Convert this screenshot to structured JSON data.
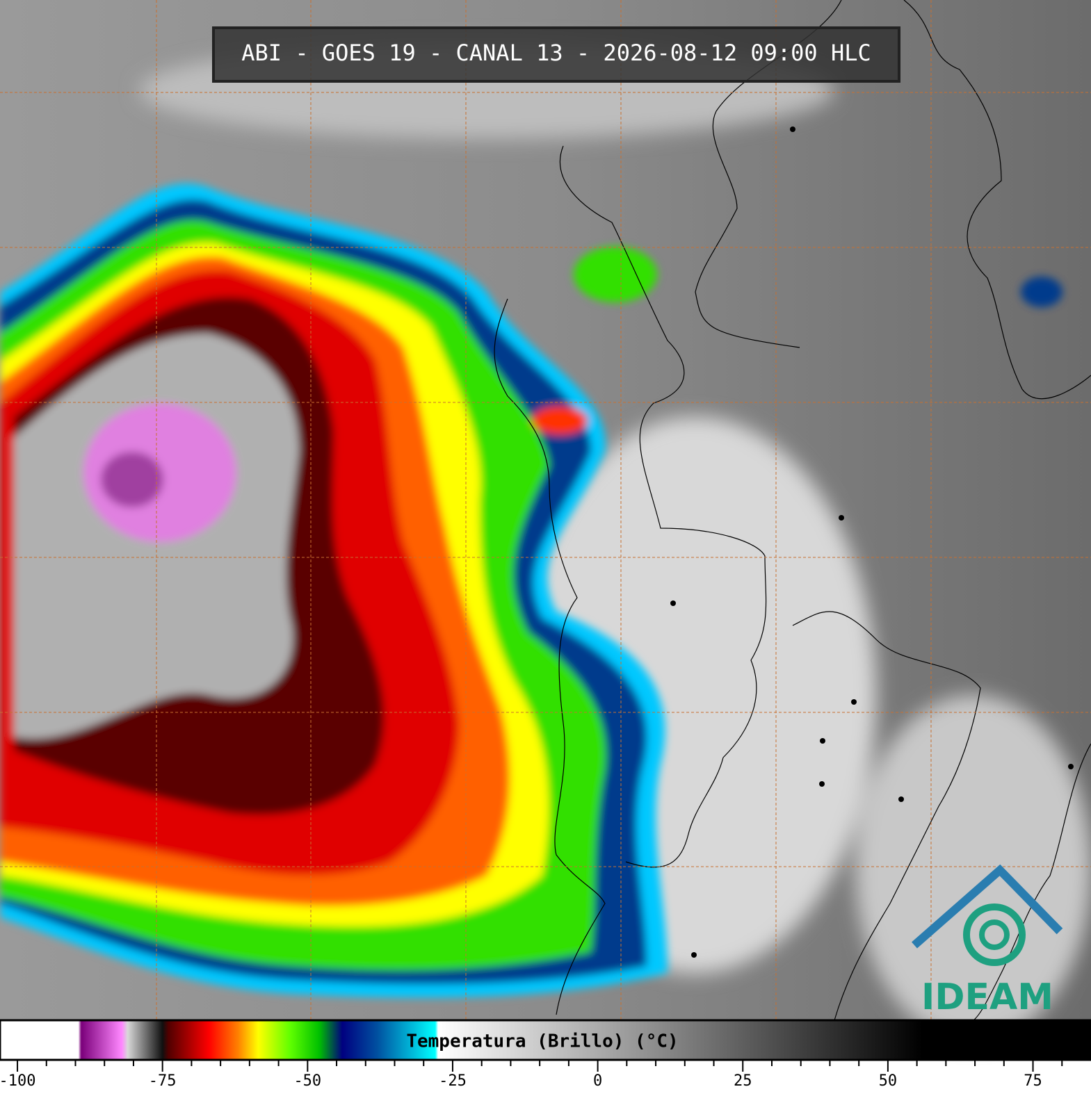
{
  "title": "ABI - GOES 19 - CANAL 13 - 2026-08-12 09:00 HLC",
  "logo": "IDEAM",
  "colorbar": {
    "label": "Temperatura (Brillo) (°C)",
    "xlim": [
      -103,
      85
    ],
    "xticks": [
      -100,
      -75,
      -50,
      -25,
      0,
      25,
      50,
      75
    ],
    "minor_xticks": [
      -95,
      -90,
      -85,
      -80,
      -70,
      -65,
      -60,
      -55,
      -45,
      -40,
      -35,
      -30,
      -20,
      -15,
      -10,
      -5,
      5,
      10,
      15,
      20,
      30,
      35,
      40,
      45,
      55,
      60,
      65,
      70,
      80
    ],
    "colormap": [
      {
        "value": -103,
        "color": "#ffffff"
      },
      {
        "value": -89.5,
        "color": "#ffffff"
      },
      {
        "value": -89,
        "color": "#7a007a"
      },
      {
        "value": -82,
        "color": "#ff88ff"
      },
      {
        "value": -81,
        "color": "#d8d8d8"
      },
      {
        "value": -75,
        "color": "#101010"
      },
      {
        "value": -74,
        "color": "#500000"
      },
      {
        "value": -67,
        "color": "#ff0000"
      },
      {
        "value": -62,
        "color": "#ff8000"
      },
      {
        "value": -58.5,
        "color": "#ffff00"
      },
      {
        "value": -53,
        "color": "#60ff00"
      },
      {
        "value": -48,
        "color": "#00c000"
      },
      {
        "value": -44,
        "color": "#000080"
      },
      {
        "value": -38,
        "color": "#0050a0"
      },
      {
        "value": -28,
        "color": "#00ffff"
      },
      {
        "value": -27.5,
        "color": "#ffffff"
      },
      {
        "value": 56,
        "color": "#000000"
      },
      {
        "value": 85,
        "color": "#000000"
      }
    ]
  }
}
